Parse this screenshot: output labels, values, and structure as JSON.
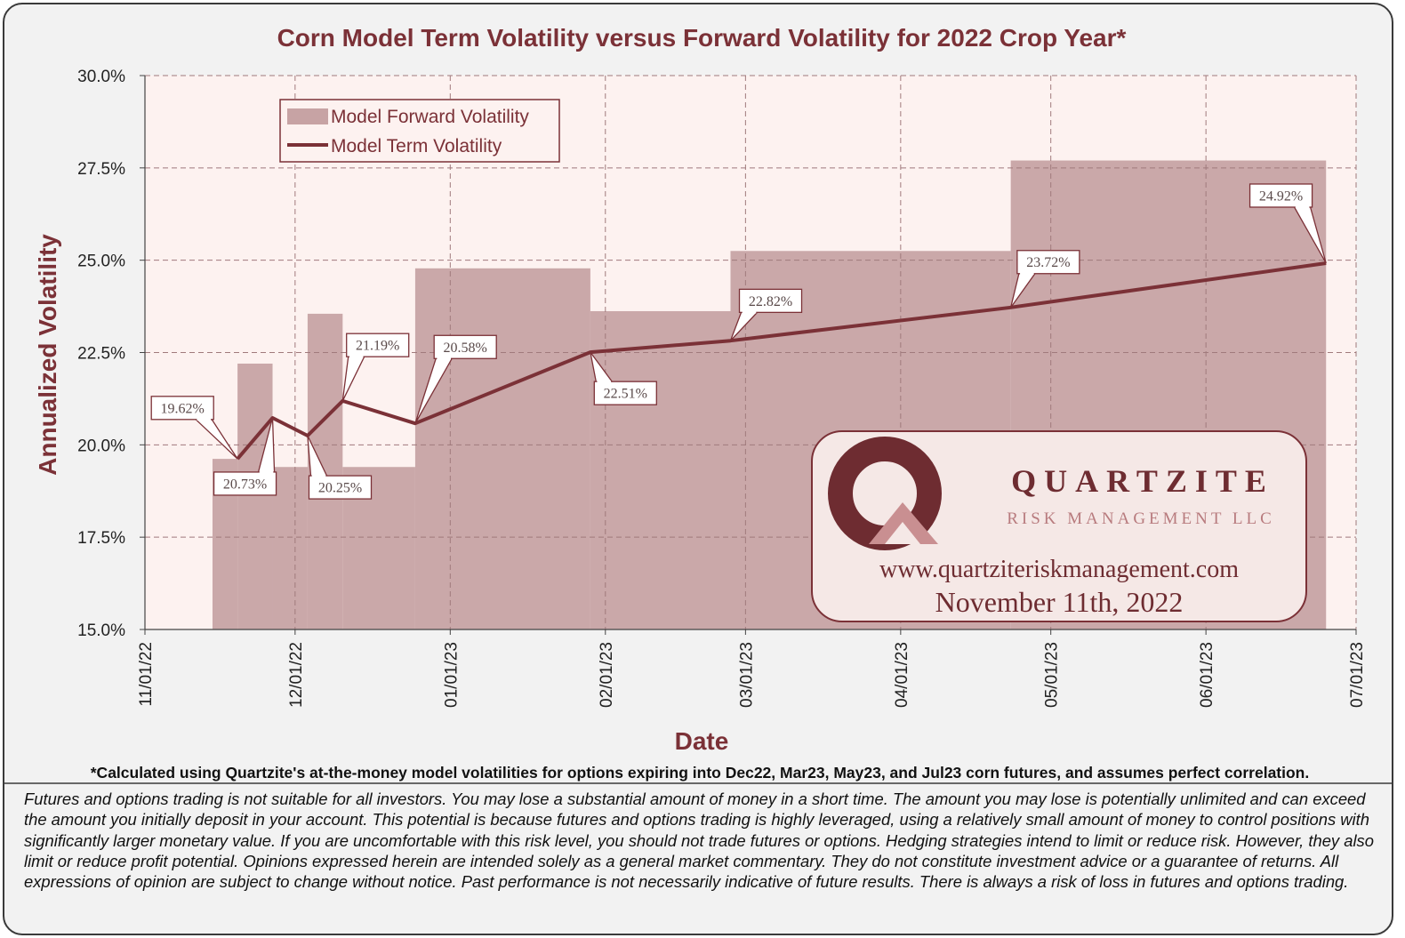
{
  "title": "Corn Model Term Volatility versus Forward Volatility for 2022 Crop Year*",
  "colors": {
    "line": "#7b3137",
    "bar": "#c7a3a4",
    "plot_bg": "#fdf2f0",
    "label_border": "#7b3137"
  },
  "chart_data": {
    "type": "line",
    "xlabel": "Date",
    "ylabel": "Annualized Volatility",
    "ylim": [
      15.0,
      30.0
    ],
    "y_ticks": [
      "15.0%",
      "17.5%",
      "20.0%",
      "22.5%",
      "25.0%",
      "27.5%",
      "30.0%"
    ],
    "y_tick_values": [
      15.0,
      17.5,
      20.0,
      22.5,
      25.0,
      27.5,
      30.0
    ],
    "x_ticks": [
      "11/01/22",
      "12/01/22",
      "01/01/23",
      "02/01/23",
      "03/01/23",
      "04/01/23",
      "05/01/23",
      "06/01/23",
      "07/01/23"
    ],
    "x_tick_days": [
      0,
      30,
      61,
      92,
      120,
      151,
      181,
      212,
      242
    ],
    "grid": true,
    "legend_position": "top-left",
    "series": [
      {
        "name": "Model Forward Volatility",
        "type": "step-bar",
        "segments": [
          {
            "start_day": 13.5,
            "end_day": 18.5,
            "value": 19.62
          },
          {
            "start_day": 18.5,
            "end_day": 25.5,
            "value": 22.2
          },
          {
            "start_day": 25.5,
            "end_day": 32.5,
            "value": 19.4
          },
          {
            "start_day": 32.5,
            "end_day": 39.5,
            "value": 23.55
          },
          {
            "start_day": 39.5,
            "end_day": 54,
            "value": 19.4
          },
          {
            "start_day": 54,
            "end_day": 89,
            "value": 24.78
          },
          {
            "start_day": 89,
            "end_day": 117,
            "value": 23.62
          },
          {
            "start_day": 117,
            "end_day": 173,
            "value": 25.25
          },
          {
            "start_day": 173,
            "end_day": 236,
            "value": 27.7
          }
        ]
      },
      {
        "name": "Model Term Volatility",
        "type": "line",
        "points": [
          {
            "day": 18.5,
            "value": 19.62,
            "label": "19.62%",
            "label_day": 7.5,
            "label_value": 21.0
          },
          {
            "day": 25.5,
            "value": 20.73,
            "label": "20.73%",
            "label_day": 20,
            "label_value": 18.95
          },
          {
            "day": 32.5,
            "value": 20.25,
            "label": "20.25%",
            "label_day": 39,
            "label_value": 18.85
          },
          {
            "day": 39.5,
            "value": 21.19,
            "label": "21.19%",
            "label_day": 46.5,
            "label_value": 22.7
          },
          {
            "day": 54,
            "value": 20.58,
            "label": "20.58%",
            "label_day": 64,
            "label_value": 22.65
          },
          {
            "day": 89,
            "value": 22.51,
            "label": "22.51%",
            "label_day": 96,
            "label_value": 21.4
          },
          {
            "day": 117,
            "value": 22.82,
            "label": "22.82%",
            "label_day": 125,
            "label_value": 23.9
          },
          {
            "day": 173,
            "value": 23.72,
            "label": "23.72%",
            "label_day": 180.5,
            "label_value": 24.95
          },
          {
            "day": 236,
            "value": 24.92,
            "label": "24.92%",
            "label_day": 227,
            "label_value": 26.75
          }
        ]
      }
    ]
  },
  "legend": {
    "forward": "Model Forward Volatility",
    "term": "Model Term Volatility"
  },
  "logo": {
    "name": "QUARTZITE",
    "subtitle": "RISK MANAGEMENT LLC",
    "url": "www.quartziteriskmanagement.com",
    "date": "November 11th, 2022"
  },
  "footnote": "*Calculated using Quartzite's at-the-money model volatilities for options expiring into Dec22, Mar23, May23, and Jul23 corn futures, and assumes perfect correlation.",
  "disclaimer": "Futures and options trading is not suitable for all investors. You may lose a substantial amount of money in a short time. The amount you may lose is potentially unlimited and can exceed the amount you initially deposit in your account. This potential is because futures and options trading is highly leveraged, using a relatively small amount of money to control positions with significantly larger monetary value. If you are uncomfortable with this risk level, you should not trade futures or options. Hedging strategies intend to limit or reduce risk. However, they also limit or reduce profit potential. Opinions expressed herein are intended solely as a general market commentary. They do not constitute investment advice or a guarantee of returns. All expressions of opinion are subject to change without notice. Past performance is not necessarily indicative of future results. There is always a risk of loss in futures and options trading."
}
